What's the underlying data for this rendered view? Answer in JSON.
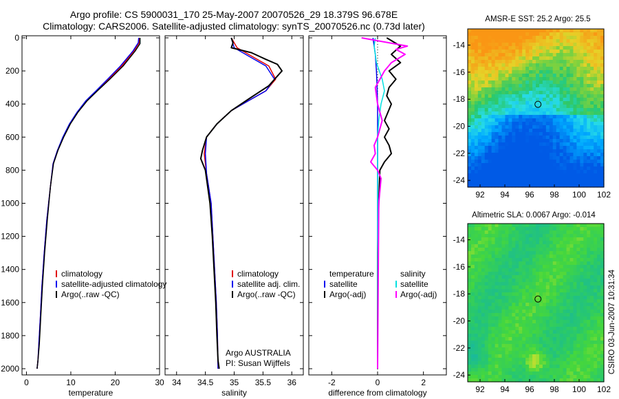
{
  "header": {
    "title1": "Argo profile: CS 5900031_170 25-May-2007 20070526_29 18.379S 96.678E",
    "title2": "Climatology: CARS2006. Satellite-adjusted climatology: synTS_20070526.nc (0.73d later)"
  },
  "side_text": "CSIRO 03-Jun-2007 10:31:34",
  "colors": {
    "clim": "#e00000",
    "sat": "#0000ee",
    "argo": "#000000",
    "sal_sat": "#00e0e0",
    "sal_argo": "#ff00ff"
  },
  "chart_data": [
    {
      "type": "line",
      "xlabel": "temperature",
      "ylabel": "",
      "xlim": [
        -1,
        30
      ],
      "ylim": [
        2050,
        0
      ],
      "yticks": [
        "0",
        "200",
        "400",
        "600",
        "800",
        "1000",
        "1200",
        "1400",
        "1600",
        "1800",
        "2000"
      ],
      "xticks": [
        "0",
        "10",
        "20",
        "30"
      ],
      "legend": [
        "climatology",
        "satellite-adjusted climatology",
        "Argo(..raw -QC)"
      ],
      "series": [
        {
          "name": "climatology",
          "color": "#e00000",
          "width": 1.5,
          "x": [
            25.5,
            25.4,
            24.2,
            21.5,
            18.5,
            15.8,
            13.5,
            11.5,
            9.8,
            8.3,
            7.0,
            6.0,
            5.4,
            4.6,
            4.0,
            3.5,
            3.1,
            2.8,
            2.6,
            2.4
          ],
          "y": [
            0,
            30,
            80,
            170,
            250,
            320,
            380,
            450,
            520,
            600,
            680,
            760,
            900,
            1100,
            1300,
            1500,
            1700,
            1850,
            1950,
            2000
          ]
        },
        {
          "name": "satellite-adjusted climatology",
          "color": "#0000ee",
          "width": 1.5,
          "x": [
            25.3,
            25.2,
            24.0,
            21.2,
            18.3,
            15.7,
            13.4,
            11.4,
            9.7,
            8.2,
            7.0,
            6.0,
            5.4,
            4.6,
            4.0,
            3.5,
            3.1,
            2.8,
            2.6,
            2.4
          ],
          "y": [
            0,
            30,
            80,
            170,
            250,
            320,
            380,
            450,
            520,
            600,
            680,
            760,
            900,
            1100,
            1300,
            1500,
            1700,
            1850,
            1950,
            2000
          ]
        },
        {
          "name": "Argo(..raw -QC)",
          "color": "#000000",
          "width": 1.5,
          "x": [
            25.6,
            25.6,
            24.5,
            21.8,
            18.8,
            16.0,
            13.7,
            11.6,
            9.9,
            8.4,
            7.1,
            6.1,
            5.4,
            4.7,
            4.1,
            3.6,
            3.2,
            2.9,
            2.6,
            2.4
          ],
          "y": [
            0,
            35,
            80,
            170,
            250,
            320,
            380,
            450,
            520,
            600,
            680,
            760,
            900,
            1100,
            1300,
            1500,
            1700,
            1850,
            1950,
            2000
          ]
        }
      ]
    },
    {
      "type": "line",
      "xlabel": "salinity",
      "xlim": [
        33.8,
        36.2
      ],
      "ylim": [
        2050,
        0
      ],
      "xticks": [
        "34",
        "34.5",
        "35",
        "35.5",
        "36"
      ],
      "legend": [
        "climatology",
        "satellite adj. clim.",
        "Argo(..raw -QC)"
      ],
      "annotation": [
        "Argo AUSTRALIA",
        "PI: Susan Wijffels"
      ],
      "series": [
        {
          "name": "climatology",
          "color": "#e00000",
          "width": 1.5,
          "x": [
            34.95,
            35.05,
            35.3,
            35.6,
            35.72,
            35.55,
            35.25,
            34.95,
            34.7,
            34.52,
            34.48,
            34.52,
            34.6,
            34.63,
            34.66,
            34.69,
            34.71,
            34.72
          ],
          "y": [
            0,
            60,
            110,
            170,
            250,
            320,
            380,
            440,
            520,
            600,
            700,
            820,
            1000,
            1200,
            1400,
            1600,
            1800,
            2000
          ]
        },
        {
          "name": "satellite adj. clim.",
          "color": "#0000ee",
          "width": 1.5,
          "x": [
            34.95,
            35.0,
            35.25,
            35.55,
            35.7,
            35.55,
            35.25,
            34.95,
            34.7,
            34.52,
            34.5,
            34.52,
            34.6,
            34.63,
            34.66,
            34.69,
            34.71,
            34.72
          ],
          "y": [
            0,
            60,
            110,
            170,
            250,
            320,
            380,
            440,
            520,
            600,
            700,
            820,
            1000,
            1200,
            1400,
            1600,
            1800,
            2000
          ]
        },
        {
          "name": "Argo(..raw -QC)",
          "color": "#000000",
          "width": 2,
          "x": [
            34.95,
            34.98,
            34.95,
            35.3,
            35.55,
            35.75,
            35.83,
            35.6,
            35.25,
            34.95,
            34.7,
            34.52,
            34.45,
            34.42,
            34.5,
            34.58,
            34.62,
            34.65,
            34.68,
            34.7,
            34.72,
            34.74
          ],
          "y": [
            0,
            30,
            60,
            90,
            130,
            160,
            200,
            290,
            370,
            440,
            520,
            600,
            680,
            730,
            800,
            1000,
            1200,
            1400,
            1600,
            1800,
            1950,
            2000
          ]
        }
      ]
    },
    {
      "type": "line",
      "xlabel": "difference from climatology",
      "xlim": [
        -3,
        3
      ],
      "ylim": [
        2050,
        0
      ],
      "xticks": [
        "-2",
        "0",
        "2"
      ],
      "legend_left": [
        "temperature",
        "satellite",
        "Argo(-adj)"
      ],
      "legend_right": [
        "salinity",
        "satellite",
        "Argo(-adj)"
      ],
      "series": [
        {
          "name": "temperature satellite",
          "color": "#0000ee",
          "width": 1.5,
          "x": [
            -0.2,
            -0.15,
            -0.1,
            -0.05,
            -0.02,
            0,
            0,
            0,
            0,
            0,
            0,
            0,
            0,
            0
          ],
          "y": [
            0,
            50,
            100,
            200,
            300,
            400,
            600,
            800,
            1000,
            1200,
            1400,
            1600,
            1800,
            2000
          ]
        },
        {
          "name": "temperature Argo(-adj)",
          "color": "#000000",
          "width": 2,
          "x": [
            0.4,
            1.0,
            0.6,
            1.0,
            0.5,
            0.8,
            0.5,
            0.4,
            0.6,
            0.3,
            0.5,
            0.3,
            0.5,
            0.6,
            0.3,
            0.1,
            0.05,
            0.0,
            0.0,
            0.0
          ],
          "y": [
            0,
            50,
            100,
            150,
            200,
            250,
            300,
            350,
            400,
            500,
            550,
            600,
            650,
            700,
            750,
            800,
            1000,
            1300,
            1600,
            2000
          ]
        },
        {
          "name": "salinity satellite",
          "color": "#00e0e0",
          "width": 1.5,
          "x": [
            -0.1,
            -0.15,
            -0.05,
            0.2,
            0.3,
            0.15,
            0.05,
            0,
            0,
            0,
            0,
            0
          ],
          "y": [
            0,
            50,
            150,
            250,
            320,
            400,
            500,
            600,
            800,
            1200,
            1600,
            2000
          ]
        },
        {
          "name": "salinity Argo(-adj)",
          "color": "#ff00ff",
          "width": 2,
          "x": [
            -0.7,
            1.3,
            0.8,
            1.2,
            0.6,
            0.3,
            -0.1,
            0.0,
            0.2,
            0.0,
            -0.15,
            -0.1,
            -0.3,
            0.0,
            0.15,
            0.05,
            0.0
          ],
          "y": [
            0,
            50,
            70,
            100,
            150,
            200,
            300,
            400,
            500,
            600,
            650,
            700,
            750,
            800,
            850,
            1000,
            2000
          ]
        }
      ]
    }
  ],
  "maps": [
    {
      "title": "AMSR-E SST: 25.2 Argo: 25.5",
      "xticks": [
        "92",
        "94",
        "96",
        "98",
        "100",
        "102"
      ],
      "yticks": [
        "-14",
        "-16",
        "-18",
        "-20",
        "-22",
        "-24"
      ],
      "xlim": [
        91,
        102
      ],
      "ylim": [
        -24.5,
        -12.8
      ],
      "marker": [
        96.678,
        -18.379
      ]
    },
    {
      "title": "Altimetric SLA: 0.0067 Argo: -0.014",
      "xticks": [
        "92",
        "94",
        "96",
        "98",
        "100",
        "102"
      ],
      "yticks": [
        "-14",
        "-16",
        "-18",
        "-20",
        "-22",
        "-24"
      ],
      "xlim": [
        91,
        102
      ],
      "ylim": [
        -24.5,
        -12.8
      ],
      "marker": [
        96.678,
        -18.379
      ]
    }
  ]
}
